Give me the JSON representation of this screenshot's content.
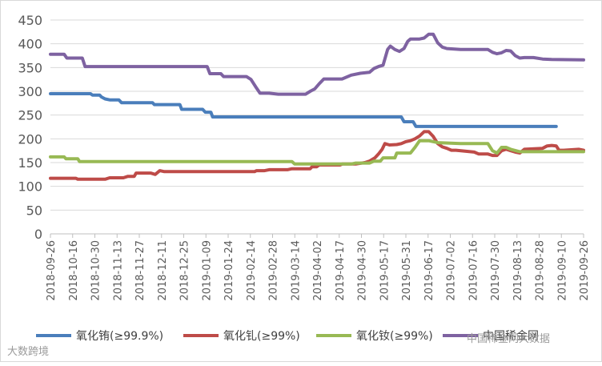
{
  "chart_data": {
    "type": "line",
    "x": [
      "2018-09-26",
      "2018-10-16",
      "2018-10-30",
      "2018-11-13",
      "2018-11-27",
      "2018-12-11",
      "2018-12-25",
      "2019-01-09",
      "2019-01-24",
      "2019-02-14",
      "2019-02-28",
      "2019-03-14",
      "2019-04-02",
      "2019-04-17",
      "2019-04-30",
      "2019-05-17",
      "2019-05-31",
      "2019-06-17",
      "2019-07-02",
      "2019-07-16",
      "2019-07-30",
      "2019-08-13",
      "2019-08-28",
      "2019-09-10",
      "2019-09-26"
    ],
    "ylim": [
      0,
      450
    ],
    "yticks": [
      0,
      50,
      100,
      150,
      200,
      250,
      300,
      350,
      400,
      450
    ],
    "grid": "horizontal",
    "legend_position": "bottom",
    "series": [
      {
        "name": "氧化铕(≥99.9%)",
        "color": "#4a7ebb",
        "values": [
          [
            0,
            295
          ],
          [
            4.4,
            295
          ],
          [
            4.6,
            292
          ],
          [
            5.4,
            292
          ],
          [
            5.6,
            288
          ],
          [
            6.0,
            284
          ],
          [
            6.5,
            282
          ],
          [
            7.5,
            282
          ],
          [
            7.8,
            276
          ],
          [
            10,
            276
          ],
          [
            11.2,
            276
          ],
          [
            11.4,
            272
          ],
          [
            12.8,
            272
          ],
          [
            14.2,
            272
          ],
          [
            14.4,
            262
          ],
          [
            16.7,
            262
          ],
          [
            17.0,
            256
          ],
          [
            17.6,
            256
          ],
          [
            17.8,
            246
          ],
          [
            20,
            246
          ],
          [
            25,
            246
          ],
          [
            30,
            246
          ],
          [
            35,
            246
          ],
          [
            38.5,
            246
          ],
          [
            38.8,
            236
          ],
          [
            39.8,
            236
          ],
          [
            40.1,
            226
          ],
          [
            45,
            226
          ],
          [
            50,
            226
          ],
          [
            55.5,
            226
          ]
        ]
      },
      {
        "name": "氧化钆(≥99%)",
        "color": "#be4b48",
        "values": [
          [
            0,
            117
          ],
          [
            2.8,
            117
          ],
          [
            3.0,
            115
          ],
          [
            6.0,
            115
          ],
          [
            6.5,
            118
          ],
          [
            8.0,
            118
          ],
          [
            8.5,
            121
          ],
          [
            9.2,
            121
          ],
          [
            9.4,
            128
          ],
          [
            11.0,
            128
          ],
          [
            11.5,
            125
          ],
          [
            12.0,
            133
          ],
          [
            12.5,
            131
          ],
          [
            15,
            131
          ],
          [
            20,
            131
          ],
          [
            22.4,
            131
          ],
          [
            22.6,
            133
          ],
          [
            23.5,
            133
          ],
          [
            24.0,
            135
          ],
          [
            26.0,
            135
          ],
          [
            26.5,
            137
          ],
          [
            28.5,
            137
          ],
          [
            28.7,
            141
          ],
          [
            29.2,
            141
          ],
          [
            29.5,
            145
          ],
          [
            30,
            145
          ],
          [
            31.8,
            145
          ],
          [
            32.0,
            147
          ],
          [
            33.5,
            147
          ],
          [
            34.5,
            150
          ],
          [
            35,
            153
          ],
          [
            35.6,
            160
          ],
          [
            36.0,
            168
          ],
          [
            36.4,
            178
          ],
          [
            36.7,
            190
          ],
          [
            37.2,
            187
          ],
          [
            38.0,
            188
          ],
          [
            38.5,
            190
          ],
          [
            39.0,
            194
          ],
          [
            39.5,
            196
          ],
          [
            40.0,
            200
          ],
          [
            40.5,
            206
          ],
          [
            41.0,
            215
          ],
          [
            41.5,
            215
          ],
          [
            42.0,
            205
          ],
          [
            42.5,
            190
          ],
          [
            43.0,
            183
          ],
          [
            43.5,
            180
          ],
          [
            44.0,
            176
          ],
          [
            44.5,
            176
          ],
          [
            45.5,
            174
          ],
          [
            46.5,
            172
          ],
          [
            47.0,
            168
          ],
          [
            48.0,
            168
          ],
          [
            48.5,
            165
          ],
          [
            49.0,
            165
          ],
          [
            49.5,
            175
          ],
          [
            50.0,
            178
          ],
          [
            51.0,
            172
          ],
          [
            51.5,
            170
          ],
          [
            52.0,
            178
          ],
          [
            54.0,
            180
          ],
          [
            54.5,
            185
          ],
          [
            55.0,
            186
          ],
          [
            55.5,
            185
          ],
          [
            55.8,
            176
          ],
          [
            56.3,
            176
          ],
          [
            58.0,
            178
          ],
          [
            58.5,
            176
          ]
        ]
      },
      {
        "name": "氧化钕(≥99%)",
        "color": "#98b954",
        "values": [
          [
            0,
            162
          ],
          [
            1.5,
            162
          ],
          [
            1.7,
            158
          ],
          [
            3.0,
            158
          ],
          [
            3.2,
            152
          ],
          [
            5,
            152
          ],
          [
            10,
            152
          ],
          [
            15,
            152
          ],
          [
            20,
            152
          ],
          [
            25,
            152
          ],
          [
            26.5,
            152
          ],
          [
            26.8,
            147
          ],
          [
            30,
            147
          ],
          [
            33.0,
            147
          ],
          [
            33.5,
            149
          ],
          [
            35,
            149
          ],
          [
            35.5,
            153
          ],
          [
            36.2,
            153
          ],
          [
            36.5,
            160
          ],
          [
            37.8,
            160
          ],
          [
            38.0,
            170
          ],
          [
            39.5,
            170
          ],
          [
            40.0,
            182
          ],
          [
            40.5,
            196
          ],
          [
            41.5,
            196
          ],
          [
            42.5,
            192
          ],
          [
            45,
            190
          ],
          [
            47.0,
            190
          ],
          [
            48.0,
            190
          ],
          [
            48.5,
            175
          ],
          [
            49.0,
            170
          ],
          [
            49.5,
            182
          ],
          [
            50.0,
            182
          ],
          [
            50.5,
            178
          ],
          [
            51.5,
            173
          ],
          [
            53,
            173
          ],
          [
            55,
            173
          ],
          [
            58.5,
            173
          ]
        ]
      },
      {
        "name": "中国稀金网",
        "color": "#7e62a1",
        "values": [
          [
            0,
            378
          ],
          [
            1.5,
            378
          ],
          [
            1.8,
            370
          ],
          [
            3.5,
            370
          ],
          [
            3.8,
            352
          ],
          [
            5,
            352
          ],
          [
            10,
            352
          ],
          [
            15,
            352
          ],
          [
            17.2,
            352
          ],
          [
            17.5,
            337
          ],
          [
            18.7,
            337
          ],
          [
            19.0,
            331
          ],
          [
            20,
            331
          ],
          [
            21.5,
            331
          ],
          [
            22.0,
            325
          ],
          [
            22.5,
            310
          ],
          [
            23.0,
            296
          ],
          [
            24.0,
            296
          ],
          [
            25.0,
            294
          ],
          [
            26.0,
            294
          ],
          [
            28.0,
            294
          ],
          [
            28.5,
            300
          ],
          [
            29.0,
            305
          ],
          [
            29.5,
            316
          ],
          [
            30.0,
            326
          ],
          [
            32.0,
            326
          ],
          [
            33.0,
            334
          ],
          [
            34.0,
            338
          ],
          [
            35.0,
            340
          ],
          [
            35.5,
            348
          ],
          [
            36.0,
            352
          ],
          [
            36.5,
            355
          ],
          [
            37.0,
            388
          ],
          [
            37.3,
            395
          ],
          [
            37.8,
            388
          ],
          [
            38.3,
            384
          ],
          [
            38.8,
            390
          ],
          [
            39.2,
            405
          ],
          [
            39.5,
            410
          ],
          [
            40.5,
            410
          ],
          [
            41.0,
            412
          ],
          [
            41.5,
            420
          ],
          [
            42.0,
            420
          ],
          [
            42.5,
            402
          ],
          [
            43.0,
            393
          ],
          [
            43.5,
            390
          ],
          [
            45,
            388
          ],
          [
            48,
            388
          ],
          [
            48.5,
            382
          ],
          [
            49.0,
            379
          ],
          [
            49.5,
            381
          ],
          [
            50.0,
            386
          ],
          [
            50.5,
            385
          ],
          [
            51.0,
            375
          ],
          [
            51.5,
            370
          ],
          [
            52.0,
            371
          ],
          [
            53,
            371
          ],
          [
            54,
            368
          ],
          [
            55,
            367
          ],
          [
            58.5,
            366
          ]
        ]
      }
    ]
  },
  "watermarks": {
    "left": "大数跨境",
    "right": "中国稀金网大数据"
  }
}
